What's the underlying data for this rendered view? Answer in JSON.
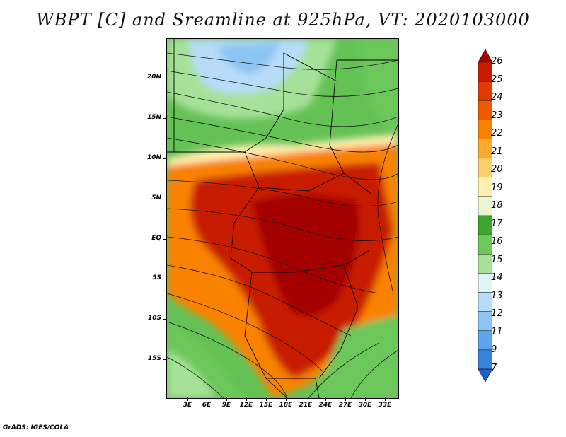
{
  "title": "WBPT [C] and Sreamline at 925hPa, VT: 2020103000",
  "credit": "GrADS: IGES/COLA",
  "map": {
    "y_labels": [
      "20N",
      "15N",
      "10N",
      "5N",
      "EQ",
      "5S",
      "10S",
      "15S"
    ],
    "x_labels": [
      "3E",
      "6E",
      "9E",
      "12E",
      "15E",
      "18E",
      "21E",
      "24E",
      "27E",
      "30E",
      "33E"
    ]
  },
  "colorbar": {
    "labels": [
      "26",
      "25",
      "24",
      "23",
      "22",
      "21",
      "20",
      "19",
      "18",
      "17",
      "16",
      "15",
      "14",
      "13",
      "12",
      "11",
      "9",
      "7"
    ],
    "colors": [
      "#a50000",
      "#c81b00",
      "#e03a00",
      "#ef5a00",
      "#f98200",
      "#fbaa2e",
      "#fdce6e",
      "#fff0b0",
      "#e8f5d0",
      "#3aa82a",
      "#6cc75a",
      "#a6e199",
      "#dff5f5",
      "#b8dcf8",
      "#8cc4f3",
      "#5aa6ea",
      "#3a83dd",
      "#1e5fd0"
    ]
  }
}
